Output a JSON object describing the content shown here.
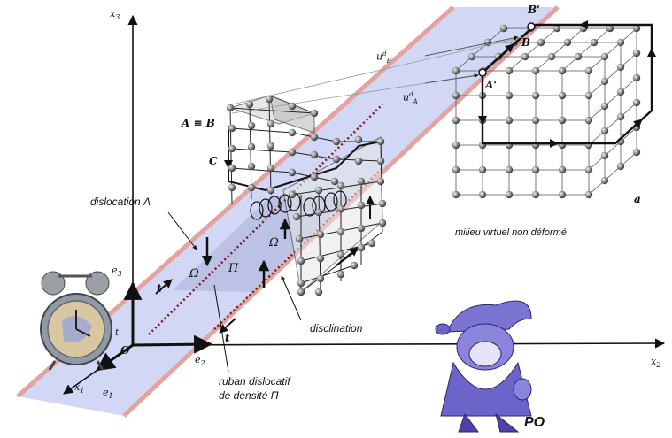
{
  "axes": {
    "x1": "x",
    "x1_sub": "1",
    "x2": "x",
    "x2_sub": "2",
    "x3": "x",
    "x3_sub": "3",
    "origin": "O",
    "e1": "e",
    "e1_sub": "1",
    "e2": "e",
    "e2_sub": "2",
    "e3": "e",
    "e3_sub": "3"
  },
  "points": {
    "a_eq_b": "A ≡ B",
    "c": "C",
    "a_prime": "A'",
    "b_prime": "B'",
    "b": "B",
    "a": "a"
  },
  "vectors": {
    "ub": "u",
    "ub_sup": "d",
    "ub_sub": "B",
    "ua": "u",
    "ua_sup": "d",
    "ua_sub": "A",
    "t": "t"
  },
  "labels": {
    "dislocation": "dislocation Λ",
    "omega": "Ω",
    "pi": "Π",
    "disclination": "disclination",
    "milieu": "milieu virtuel non déformé",
    "ruban_line1": "ruban dislocatif",
    "ruban_line2": "de densité Π",
    "clock_t": "t",
    "po": "PO"
  },
  "colors": {
    "ribbon_fill": "#c9d0f2",
    "ribbon_edge": "#e3a39f",
    "character": "#6d64c9"
  }
}
